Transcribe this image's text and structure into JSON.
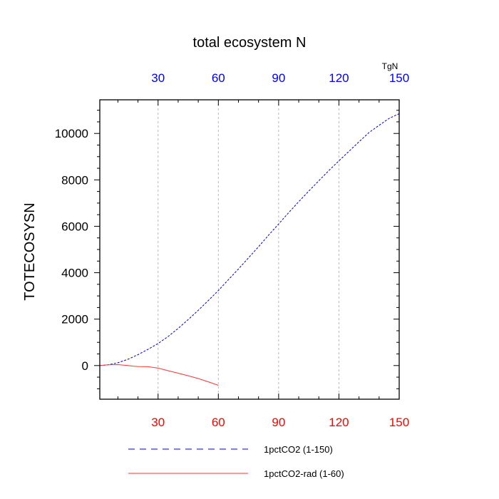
{
  "chart_data": {
    "type": "line",
    "title": "total ecosystem N",
    "ylabel": "TOTECOSYSN",
    "units": "TgN",
    "xlim": [
      1,
      150
    ],
    "ylim": [
      -1450,
      11450
    ],
    "xticks": [
      30,
      60,
      90,
      120,
      150
    ],
    "xtick_labels": [
      "30",
      "60",
      "90",
      "120",
      "150"
    ],
    "yticks": [
      0,
      2000,
      4000,
      6000,
      8000,
      10000
    ],
    "ytick_labels": [
      "0",
      "2000",
      "4000",
      "6000",
      "8000",
      "10000"
    ],
    "grid": "vertical dashed",
    "legend_position": "bottom",
    "series": [
      {
        "name": "1pctCO2 (1-150)",
        "color": "#0000cc",
        "dash": "dashed",
        "axis_color": "#0000ff",
        "x": [
          1,
          5,
          10,
          15,
          20,
          25,
          30,
          35,
          40,
          45,
          50,
          55,
          60,
          65,
          70,
          75,
          80,
          85,
          90,
          95,
          100,
          105,
          110,
          115,
          120,
          125,
          130,
          135,
          140,
          145,
          150
        ],
        "y": [
          0,
          30,
          120,
          270,
          470,
          700,
          950,
          1250,
          1600,
          1980,
          2380,
          2800,
          3230,
          3700,
          4160,
          4640,
          5120,
          5620,
          6100,
          6590,
          7060,
          7520,
          7960,
          8400,
          8820,
          9230,
          9640,
          10040,
          10350,
          10650,
          10850
        ]
      },
      {
        "name": "1pctCO2-rad (1-60)",
        "color": "#ff3333",
        "dash": "solid",
        "axis_color": "#ff0000",
        "x": [
          1,
          5,
          10,
          15,
          18,
          20,
          25,
          30,
          35,
          40,
          45,
          50,
          55,
          60
        ],
        "y": [
          0,
          30,
          40,
          0,
          -30,
          -40,
          -50,
          -110,
          -220,
          -330,
          -440,
          -560,
          -700,
          -850
        ]
      }
    ]
  }
}
